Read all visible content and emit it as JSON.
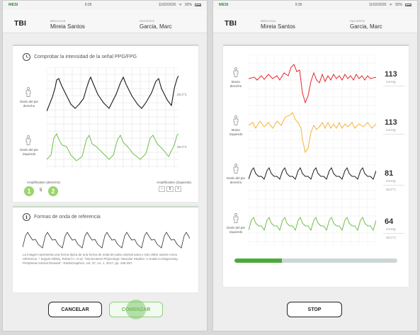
{
  "status": {
    "brand": "MESI",
    "time": "9:35",
    "date": "11/02/2020",
    "battery": "92%"
  },
  "header": {
    "app": "TBI",
    "doctor_label": "MÉDICO/A",
    "doctor": "Mireia Santos",
    "patient_label": "PACIENTE",
    "patient": "Garcia, Marc"
  },
  "check": {
    "title": "Comprobar la intensidad de la señal PPG/FPG",
    "right_label": "Dedo del pie derecho",
    "left_label": "Dedo del pie izquierdo",
    "right_temp": "26.0°C",
    "left_temp": "28.0°C",
    "amp_right_label": "Amplification (derecho)",
    "amp_right_value": "5",
    "amp_left_label": "Amplification (izquierdo)",
    "amp_left_value": "5",
    "minus": "−",
    "plus": "+",
    "step1": "1",
    "step2": "2"
  },
  "reference": {
    "title": "Formas de onda de referencia",
    "text": "La imagen representa una forma típica de una forma de onda de pulso arterial sana y solo debe usarse como referencia. * Seguin-Sibley, Robert C. et al. \"Noninvasive Physiologic Vascular Studies: A Guide to Diagnosing Peripheral Arterial Disease\". RadioGraphics, vol. 37, no. 1, 2017, pp. 346-357."
  },
  "buttons": {
    "cancel": "CANCELAR",
    "start": "COMENZAR",
    "stop": "STOP"
  },
  "measure": {
    "arm_right_label": "Brazo derecho",
    "arm_left_label": "Brazo izquierdo",
    "toe_right_label": "Dedo del pie derecho",
    "toe_left_label": "Dedo del pie izquierdo",
    "arm_right_value": "113",
    "arm_left_value": "113",
    "toe_right_value": "81",
    "toe_left_value": "64",
    "unit": "mmHg",
    "toe_right_temp": "26.0°C",
    "toe_left_temp": "28.0°C",
    "progress": 0.29
  },
  "colors": {
    "red": "#e8232a",
    "orange": "#f5b335",
    "black": "#1a1a1a",
    "green": "#6fbf4a"
  }
}
